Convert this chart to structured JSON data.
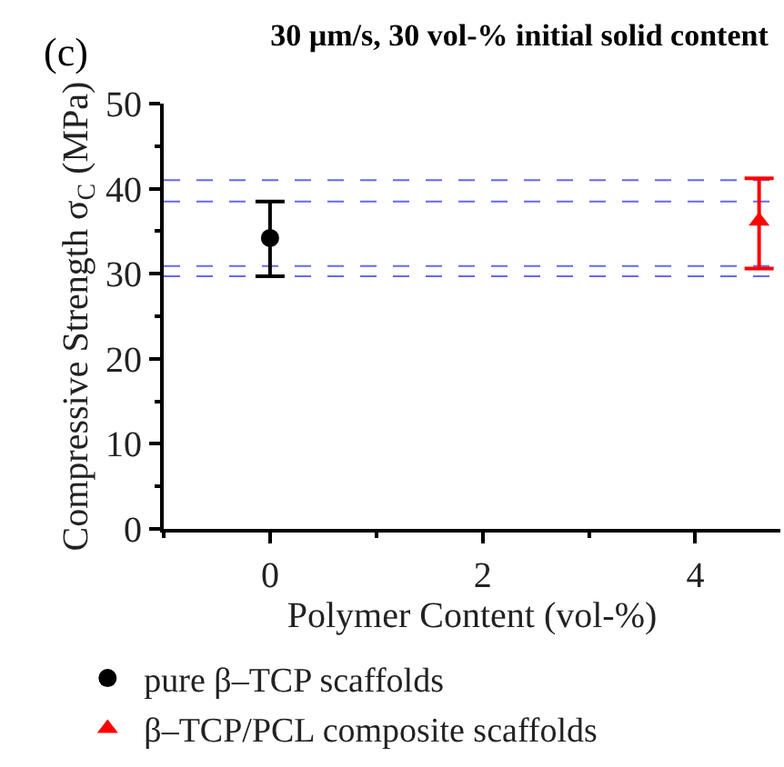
{
  "chart_data": {
    "type": "scatter",
    "title": "30 µm/s, 30 vol-% initial solid content",
    "xlabel": "Polymer Content (vol-%)",
    "ylabel": "Compressive Strength σ$_{C}$ (MPa)",
    "annotations": [
      "(c)"
    ],
    "xlim": [
      -1,
      4.8
    ],
    "xticks": [
      0,
      2,
      4
    ],
    "ylim": [
      0,
      50
    ],
    "yticks": [
      0,
      10,
      20,
      30,
      40,
      50
    ],
    "grid": false,
    "legend": "bottom",
    "series": [
      {
        "name": "pure β–TCP scaffolds",
        "color": "#000000",
        "marker": "circle",
        "x": [
          0
        ],
        "values": [
          34.2
        ],
        "errors": [
          [
            29.7,
            38.5
          ]
        ]
      },
      {
        "name": "β–TCP/PCL composite scaffolds",
        "color": "#ff0000",
        "marker": "triangle",
        "x": [
          4.6
        ],
        "values": [
          36.2
        ],
        "errors": [
          [
            30.6,
            41.2
          ]
        ]
      }
    ],
    "ref_lines": [
      {
        "axis": "y",
        "value": 41.0,
        "label": null,
        "color": "#6666ff",
        "line_style": "dashed"
      },
      {
        "axis": "y",
        "value": 38.5,
        "label": null,
        "color": "#6666ff",
        "line_style": "dashed"
      },
      {
        "axis": "y",
        "value": 30.9,
        "label": null,
        "color": "#6666ff",
        "line_style": "dashed"
      },
      {
        "axis": "y",
        "value": 29.7,
        "label": null,
        "color": "#6666ff",
        "line_style": "dashed"
      }
    ]
  }
}
